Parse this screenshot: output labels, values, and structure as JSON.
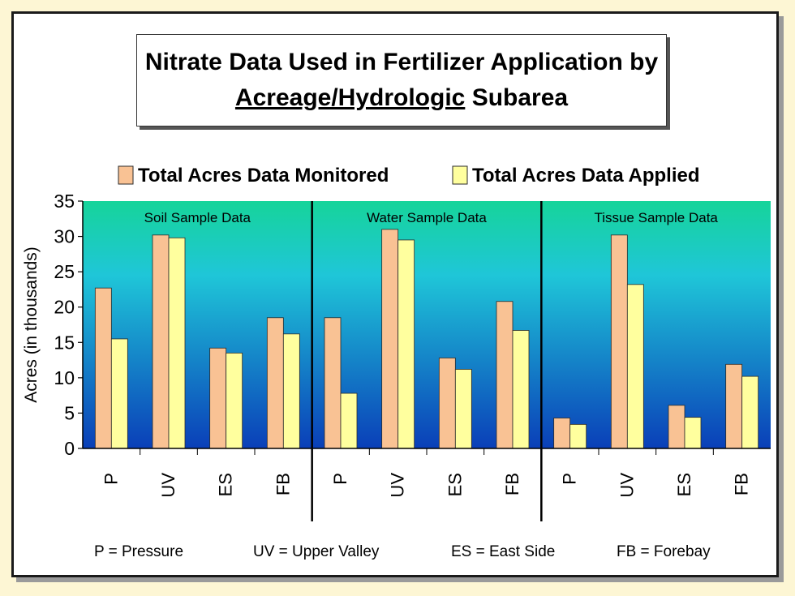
{
  "title": {
    "line1": "Nitrate Data Used in Fertilizer Application by",
    "line2_underlined": "Acreage/Hydrologic",
    "line2_rest": "Subarea"
  },
  "footer": {
    "p": "P = Pressure",
    "uv": "UV = Upper Valley",
    "es": "ES = East Side",
    "fb": "FB = Forebay"
  },
  "colors": {
    "monitored": "#f9c294",
    "applied": "#ffff9e",
    "plot_top": "#16d49a",
    "plot_mid": "#1fc6d8",
    "plot_bottom": "#0a3fb8"
  },
  "chart_data": {
    "type": "bar",
    "ylabel": "Acres (in thousands)",
    "ylim": [
      0,
      35
    ],
    "yticks": [
      0,
      5,
      10,
      15,
      20,
      25,
      30,
      35
    ],
    "legend": [
      "Total Acres Data Monitored",
      "Total Acres Data Applied"
    ],
    "legend_position": "top",
    "groups": [
      {
        "label": "Soil Sample Data",
        "categories": [
          "P",
          "UV",
          "ES",
          "FB"
        ],
        "series": [
          {
            "name": "Total Acres Data Monitored",
            "values": [
              22.7,
              30.2,
              14.2,
              18.5
            ]
          },
          {
            "name": "Total Acres Data Applied",
            "values": [
              15.5,
              29.8,
              13.5,
              16.2
            ]
          }
        ]
      },
      {
        "label": "Water Sample Data",
        "categories": [
          "P",
          "UV",
          "ES",
          "FB"
        ],
        "series": [
          {
            "name": "Total Acres Data Monitored",
            "values": [
              18.5,
              31.0,
              12.8,
              20.8
            ]
          },
          {
            "name": "Total Acres Data Applied",
            "values": [
              7.8,
              29.5,
              11.2,
              16.7
            ]
          }
        ]
      },
      {
        "label": "Tissue Sample Data",
        "categories": [
          "P",
          "UV",
          "ES",
          "FB"
        ],
        "series": [
          {
            "name": "Total Acres Data Monitored",
            "values": [
              4.3,
              30.2,
              6.1,
              11.9
            ]
          },
          {
            "name": "Total Acres Data Applied",
            "values": [
              3.4,
              23.2,
              4.4,
              10.2
            ]
          }
        ]
      }
    ]
  }
}
